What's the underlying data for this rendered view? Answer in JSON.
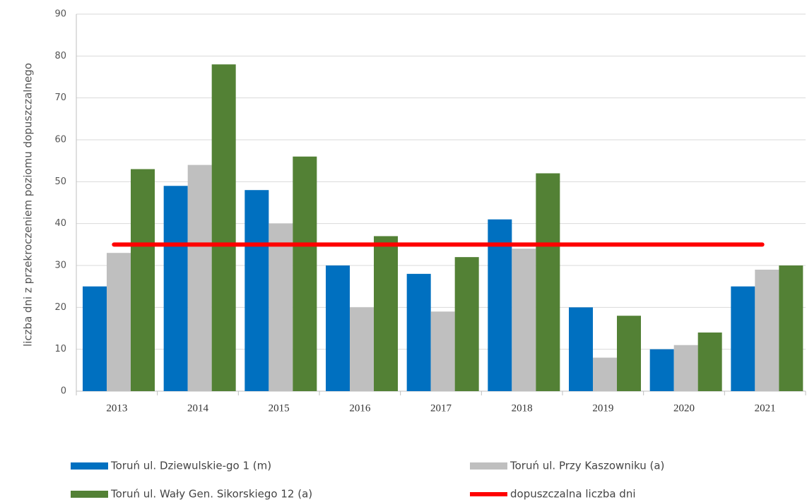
{
  "chart_data": {
    "type": "bar",
    "y_label": "liczba dni z przekroczeniem poziomu dopuszczalnego",
    "categories": [
      "2013",
      "2014",
      "2015",
      "2016",
      "2017",
      "2018",
      "2019",
      "2020",
      "2021"
    ],
    "series": [
      {
        "name": "Toruń ul. Dziewulskie-go 1 (m)",
        "color": "#0070c0",
        "values": [
          25,
          49,
          48,
          30,
          28,
          41,
          20,
          10,
          25
        ]
      },
      {
        "name": "Toruń ul. Przy Kaszowniku (a)",
        "color": "#bfbfbf",
        "values": [
          33,
          54,
          40,
          20,
          19,
          34,
          8,
          11,
          29
        ]
      },
      {
        "name": "Toruń ul. Wały Gen. Sikorskiego 12 (a)",
        "color": "#538135",
        "values": [
          53,
          78,
          56,
          37,
          32,
          52,
          18,
          14,
          30
        ]
      },
      {
        "name": "dopuszczalna liczba dni",
        "color": "#ff0000",
        "type": "line",
        "values": [
          35,
          35,
          35,
          35,
          35,
          35,
          35,
          35,
          35
        ]
      }
    ],
    "ylim": [
      0,
      90
    ],
    "yticks": [
      0,
      10,
      20,
      30,
      40,
      50,
      60,
      70,
      80,
      90
    ],
    "grid": true
  }
}
